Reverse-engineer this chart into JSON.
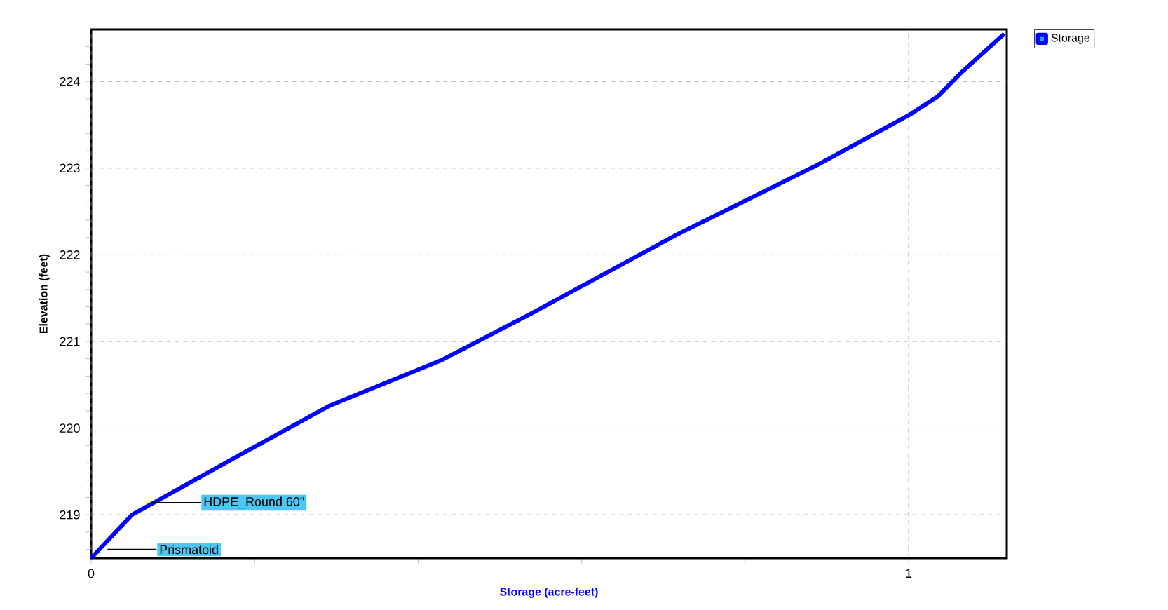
{
  "chart_data": {
    "type": "line",
    "xlabel": "Storage (acre-feet)",
    "ylabel": "Elevation  (feet)",
    "series": [
      {
        "name": "Storage",
        "color": "#0000ff",
        "x": [
          0,
          0.05,
          0.178,
          0.292,
          0.43,
          0.544,
          0.716,
          0.887,
          1.002,
          1.036,
          1.064,
          1.117
        ],
        "values": [
          218.5,
          219.0,
          219.67,
          220.26,
          220.79,
          221.35,
          222.23,
          223.03,
          223.62,
          223.83,
          224.1,
          224.55
        ]
      }
    ],
    "xlim": [
      0,
      1.12
    ],
    "ylim": [
      218.5,
      224.6
    ],
    "xticks": [
      0,
      {
        "value": 0.2,
        "label": null
      },
      {
        "value": 0.4,
        "label": null
      },
      {
        "value": 0.6,
        "label": null
      },
      {
        "value": 0.8,
        "label": null
      },
      1
    ],
    "yticks": [
      {
        "value": 218.6,
        "label": null
      },
      {
        "value": 218.8,
        "label": null
      },
      219,
      {
        "value": 219.2,
        "label": null
      },
      {
        "value": 219.4,
        "label": null
      },
      {
        "value": 219.6,
        "label": null
      },
      {
        "value": 219.8,
        "label": null
      },
      220,
      {
        "value": 220.2,
        "label": null
      },
      {
        "value": 220.4,
        "label": null
      },
      {
        "value": 220.6,
        "label": null
      },
      {
        "value": 220.8,
        "label": null
      },
      221,
      {
        "value": 221.2,
        "label": null
      },
      {
        "value": 221.4,
        "label": null
      },
      {
        "value": 221.6,
        "label": null
      },
      {
        "value": 221.8,
        "label": null
      },
      222,
      {
        "value": 222.2,
        "label": null
      },
      {
        "value": 222.4,
        "label": null
      },
      {
        "value": 222.6,
        "label": null
      },
      {
        "value": 222.8,
        "label": null
      },
      223,
      {
        "value": 223.2,
        "label": null
      },
      {
        "value": 223.4,
        "label": null
      },
      {
        "value": 223.6,
        "label": null
      },
      {
        "value": 223.8,
        "label": null
      },
      224,
      {
        "value": 224.2,
        "label": null
      },
      {
        "value": 224.4,
        "label": null
      }
    ],
    "grid": true,
    "legend": "top right",
    "marker": "none",
    "line_style": "solid",
    "annotations": [
      {
        "text": "HDPE_Round 60\"",
        "x": 0.074,
        "y": 219.14
      },
      {
        "text": "Prismatoid",
        "x": 0.02,
        "y": 218.6
      }
    ]
  }
}
